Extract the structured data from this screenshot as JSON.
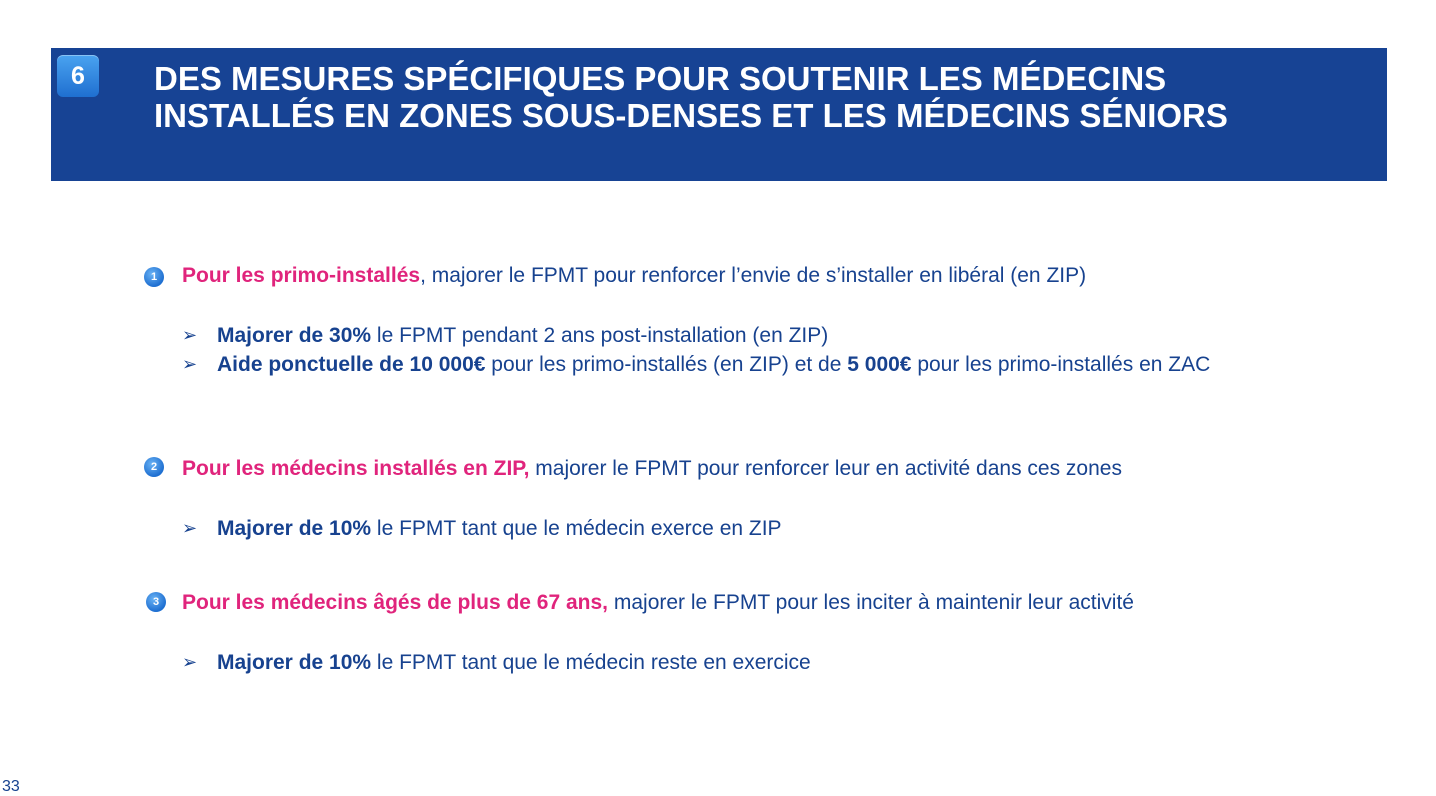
{
  "header": {
    "badge": "6",
    "title_line1": "DES MESURES SPÉCIFIQUES POUR SOUTENIR LES MÉDECINS",
    "title_line2": "INSTALLÉS EN ZONES SOUS-DENSES ET LES MÉDECINS SÉNIORS"
  },
  "colors": {
    "header_bg": "#174394",
    "accent_pink": "#e0247c",
    "text_blue": "#17428f"
  },
  "sections": [
    {
      "number": "1",
      "lead_bold": "Pour les primo-installés",
      "lead_rest": ", majorer le FPMT pour renforcer l’envie de s’installer en libéral (en ZIP)",
      "bullets": [
        {
          "b1": "Majorer de 30%",
          "t1": " le FPMT pendant 2 ans post-installation (en ZIP)"
        },
        {
          "b1": "Aide ponctuelle de 10 000€",
          "t1": " pour les primo-installés (en ZIP) et de ",
          "b2": "5 000€",
          "t2": " pour les primo-installés en ZAC"
        }
      ]
    },
    {
      "number": "2",
      "lead_bold": "Pour les médecins installés en ZIP,",
      "lead_rest": " majorer le FPMT pour renforcer leur en activité dans ces zones",
      "bullets": [
        {
          "b1": "Majorer de 10%",
          "t1": " le FPMT tant que le médecin exerce en ZIP"
        }
      ]
    },
    {
      "number": "3",
      "lead_bold": "Pour les médecins âgés de plus de 67 ans,",
      "lead_rest": " majorer le FPMT pour les inciter à maintenir leur activité",
      "bullets": [
        {
          "b1": "Majorer de 10%",
          "t1": " le FPMT tant que le médecin reste en exercice"
        }
      ]
    }
  ],
  "bullet_glyph": "➢",
  "page_number": "33"
}
